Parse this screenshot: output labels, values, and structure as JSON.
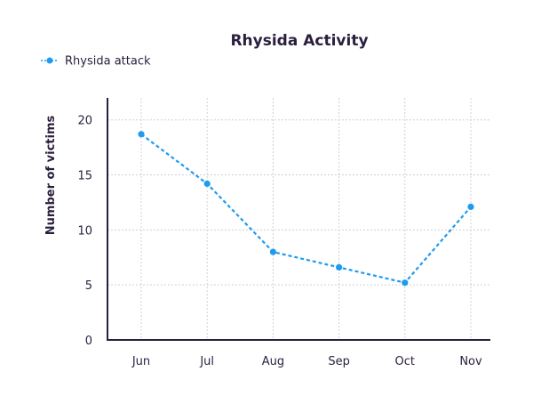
{
  "chart_data": {
    "type": "line",
    "title": "Rhysida Activity",
    "xlabel": "",
    "ylabel": "Number of victims",
    "categories": [
      "Jun",
      "Jul",
      "Aug",
      "Sep",
      "Oct",
      "Nov"
    ],
    "series": [
      {
        "name": "Rhysida attack",
        "values": [
          18.7,
          14.2,
          8.0,
          6.6,
          5.2,
          12.1
        ],
        "color": "#1e9bf0",
        "line_style": "dashed",
        "marker": "circle"
      }
    ],
    "ylim": [
      0,
      22
    ],
    "yticks": [
      0,
      5,
      10,
      15,
      20
    ],
    "grid": true,
    "legend_position": "top-left"
  }
}
